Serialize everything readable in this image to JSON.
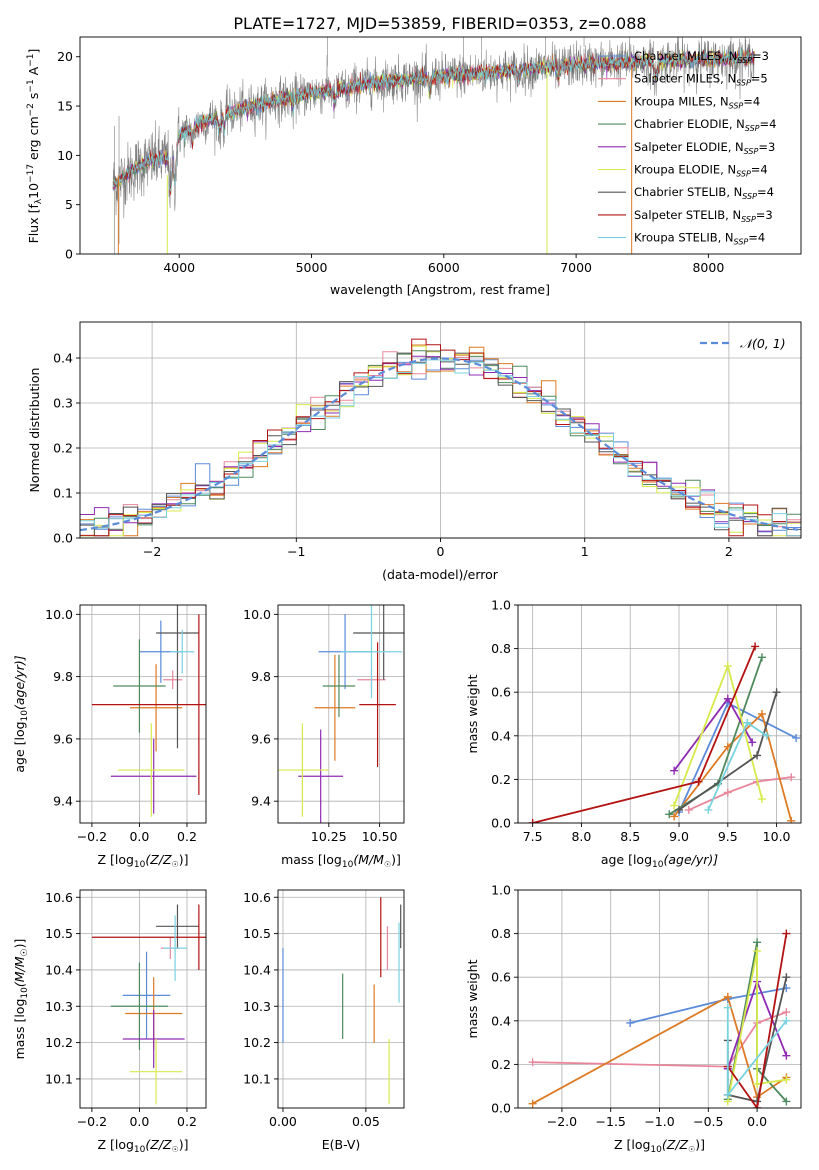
{
  "figure": {
    "title": "PLATE=1727, MJD=53859, FIBERID=0353, z=0.088",
    "colors": {
      "chabrier_miles": "#5b8bd9",
      "salpeter_miles": "#e8879c",
      "kroupa_miles": "#dd7a24",
      "chabrier_elodie": "#4f8a5e",
      "salpeter_elodie": "#8f2bb3",
      "kroupa_elodie": "#d7ea4c",
      "chabrier_stelib": "#555555",
      "salpeter_stelib": "#b31212",
      "kroupa_stelib": "#79d3df",
      "data": "#7f7f7f",
      "gauss": "#5b8bd9",
      "grid": "#b0b0b0"
    }
  },
  "chart_data": [
    {
      "id": "spectrum",
      "type": "line",
      "title": "PLATE=1727, MJD=53859, FIBERID=0353, z=0.088",
      "xlabel": "wavelength [Angstrom, rest frame]",
      "ylabel": "Flux [f",
      "ylabel_sub": "λ",
      "ylabel_rest": "10",
      "ylabel_exp": "−17",
      "ylabel_units": " erg cm",
      "ylabel_units_exp": "−2",
      "ylabel_s": " s",
      "ylabel_s_exp": "−1",
      "ylabel_A": " A",
      "ylabel_A_exp": "−1",
      "ylabel_end": "]",
      "xlim": [
        3250,
        8700
      ],
      "ylim": [
        0,
        22
      ],
      "xticks": [
        4000,
        5000,
        6000,
        7000,
        8000
      ],
      "yticks": [
        0,
        5,
        10,
        15,
        20
      ],
      "continuum": [
        [
          3500,
          7.0
        ],
        [
          3600,
          8.0
        ],
        [
          3700,
          9.0
        ],
        [
          3800,
          9.5
        ],
        [
          3950,
          9.8
        ],
        [
          4000,
          12.0
        ],
        [
          4200,
          13.5
        ],
        [
          4500,
          14.8
        ],
        [
          4800,
          15.8
        ],
        [
          5000,
          16.3
        ],
        [
          5300,
          17.0
        ],
        [
          5600,
          17.6
        ],
        [
          6000,
          18.0
        ],
        [
          6500,
          18.6
        ],
        [
          7000,
          19.2
        ],
        [
          7500,
          19.5
        ],
        [
          8000,
          19.7
        ],
        [
          8350,
          19.9
        ]
      ],
      "legend": [
        {
          "label": "Chabrier MILES, N",
          "sub": "SSP",
          "value": "=3",
          "color_key": "chabrier_miles"
        },
        {
          "label": "Salpeter MILES, N",
          "sub": "SSP",
          "value": "=5",
          "color_key": "salpeter_miles"
        },
        {
          "label": "Kroupa MILES, N",
          "sub": "SSP",
          "value": "=4",
          "color_key": "kroupa_miles"
        },
        {
          "label": "Chabrier ELODIE, N",
          "sub": "SSP",
          "value": "=4",
          "color_key": "chabrier_elodie"
        },
        {
          "label": "Salpeter ELODIE, N",
          "sub": "SSP",
          "value": "=3",
          "color_key": "salpeter_elodie"
        },
        {
          "label": "Kroupa ELODIE, N",
          "sub": "SSP",
          "value": "=4",
          "color_key": "kroupa_elodie"
        },
        {
          "label": "Chabrier STELIB, N",
          "sub": "SSP",
          "value": "=4",
          "color_key": "chabrier_stelib"
        },
        {
          "label": "Salpeter STELIB, N",
          "sub": "SSP",
          "value": "=3",
          "color_key": "salpeter_stelib"
        },
        {
          "label": "Kroupa STELIB, N",
          "sub": "SSP",
          "value": "=4",
          "color_key": "kroupa_stelib"
        }
      ]
    },
    {
      "id": "residuals",
      "type": "histogram",
      "xlabel": "(data-model)/error",
      "ylabel": "Normed distribution",
      "xlim": [
        -2.5,
        2.5
      ],
      "ylim": [
        0,
        0.48
      ],
      "xticks": [
        -2,
        -1,
        0,
        1,
        2
      ],
      "xtick_labels": [
        "−2",
        "−1",
        "0",
        "1",
        "2"
      ],
      "yticks": [
        0,
        0.1,
        0.2,
        0.3,
        0.4
      ],
      "ytick_labels": [
        "0.0",
        "0.1",
        "0.2",
        "0.3",
        "0.4"
      ],
      "bin_width": 0.1,
      "gauss_label": "𝒩(0, 1)"
    },
    {
      "id": "age_vs_Z",
      "type": "errorbar",
      "xlabel": "Z [log",
      "xlabel_sub": "10",
      "xlabel_rest": "(Z/Z",
      "xlabel_sun": "☉",
      "xlabel_end": ")]",
      "ylabel": "age  [log",
      "ylabel_sub": "10",
      "ylabel_rest": "(age/yr)]",
      "xlim": [
        -0.25,
        0.28
      ],
      "ylim": [
        9.33,
        10.03
      ],
      "xticks": [
        -0.2,
        0.0,
        0.2
      ],
      "xtick_labels": [
        "−0.2",
        "0.0",
        "0.2"
      ],
      "yticks": [
        9.4,
        9.6,
        9.8,
        10.0
      ],
      "ytick_labels": [
        "9.4",
        "9.6",
        "9.8",
        "10.0"
      ],
      "points": [
        {
          "k": "chabrier_miles",
          "x": 0.09,
          "xe": 0.09,
          "y": 9.88,
          "ye": 0.1
        },
        {
          "k": "salpeter_miles",
          "x": 0.14,
          "xe": 0.04,
          "y": 9.79,
          "ye": 0.03
        },
        {
          "k": "kroupa_miles",
          "x": 0.07,
          "xe": 0.11,
          "y": 9.7,
          "ye": 0.14
        },
        {
          "k": "chabrier_elodie",
          "x": 0.0,
          "xe": 0.11,
          "y": 9.77,
          "ye": 0.15
        },
        {
          "k": "salpeter_elodie",
          "x": 0.06,
          "xe": 0.18,
          "y": 9.48,
          "ye": 0.12
        },
        {
          "k": "kroupa_elodie",
          "x": 0.05,
          "xe": 0.14,
          "y": 9.5,
          "ye": 0.15
        },
        {
          "k": "chabrier_stelib",
          "x": 0.16,
          "xe": 0.09,
          "y": 9.94,
          "ye": 0.37
        },
        {
          "k": "salpeter_stelib",
          "x": 0.25,
          "xe": 0.45,
          "y": 9.71,
          "ye": 0.29
        },
        {
          "k": "kroupa_stelib",
          "x": 0.18,
          "xe": 0.05,
          "y": 9.88,
          "ye": 0.07
        }
      ]
    },
    {
      "id": "age_vs_mass",
      "type": "errorbar",
      "xlabel": "mass [log",
      "xlabel_sub": "10",
      "xlabel_rest": "(M/M",
      "xlabel_sun": "☉",
      "xlabel_end": ")]",
      "xlim": [
        10.0,
        10.62
      ],
      "ylim": [
        9.33,
        10.03
      ],
      "xticks": [
        10.25,
        10.5
      ],
      "xtick_labels": [
        "10.25",
        "10.50"
      ],
      "yticks": [
        9.4,
        9.6,
        9.8,
        10.0
      ],
      "ytick_labels": [
        "9.4",
        "9.6",
        "9.8",
        "10.0"
      ],
      "points": [
        {
          "k": "chabrier_miles",
          "x": 10.33,
          "xe": 0.13,
          "y": 9.88,
          "ye": 0.12
        },
        {
          "k": "salpeter_miles",
          "x": 10.46,
          "xe": 0.07,
          "y": 9.79,
          "ye": 0.03
        },
        {
          "k": "kroupa_miles",
          "x": 10.28,
          "xe": 0.1,
          "y": 9.7,
          "ye": 0.17
        },
        {
          "k": "chabrier_elodie",
          "x": 10.3,
          "xe": 0.08,
          "y": 9.77,
          "ye": 0.1
        },
        {
          "k": "salpeter_elodie",
          "x": 10.21,
          "xe": 0.11,
          "y": 9.48,
          "ye": 0.15
        },
        {
          "k": "kroupa_elodie",
          "x": 10.12,
          "xe": 0.13,
          "y": 9.5,
          "ye": 0.15
        },
        {
          "k": "chabrier_stelib",
          "x": 10.52,
          "xe": 0.15,
          "y": 9.94,
          "ye": 0.15
        },
        {
          "k": "salpeter_stelib",
          "x": 10.49,
          "xe": 0.09,
          "y": 9.71,
          "ye": 0.2
        },
        {
          "k": "kroupa_stelib",
          "x": 10.46,
          "xe": 0.15,
          "y": 9.88,
          "ye": 0.15
        }
      ]
    },
    {
      "id": "massweight_vs_age",
      "type": "line",
      "xlabel": "age  [log",
      "xlabel_sub": "10",
      "xlabel_rest": "(age/yr)]",
      "ylabel": "mass weight",
      "xlim": [
        7.35,
        10.25
      ],
      "ylim": [
        0,
        1.0
      ],
      "xticks": [
        7.5,
        8.0,
        8.5,
        9.0,
        9.5,
        10.0
      ],
      "xtick_labels": [
        "7.5",
        "8.0",
        "8.5",
        "9.0",
        "9.5",
        "10.0"
      ],
      "yticks": [
        0,
        0.2,
        0.4,
        0.6,
        0.8,
        1.0
      ],
      "ytick_labels": [
        "0.0",
        "0.2",
        "0.4",
        "0.6",
        "0.8",
        "1.0"
      ],
      "series": [
        {
          "k": "chabrier_miles",
          "points": [
            [
              9.0,
              0.05
            ],
            [
              9.5,
              0.55
            ],
            [
              10.2,
              0.39
            ]
          ]
        },
        {
          "k": "salpeter_miles",
          "points": [
            [
              9.1,
              0.06
            ],
            [
              9.5,
              0.14
            ],
            [
              9.8,
              0.19
            ],
            [
              10.15,
              0.21
            ]
          ]
        },
        {
          "k": "kroupa_miles",
          "points": [
            [
              8.95,
              0.03
            ],
            [
              9.5,
              0.35
            ],
            [
              9.85,
              0.5
            ],
            [
              10.15,
              0.01
            ]
          ]
        },
        {
          "k": "chabrier_elodie",
          "points": [
            [
              8.9,
              0.04
            ],
            [
              9.4,
              0.18
            ],
            [
              9.85,
              0.76
            ]
          ]
        },
        {
          "k": "salpeter_elodie",
          "points": [
            [
              8.95,
              0.24
            ],
            [
              9.5,
              0.57
            ],
            [
              9.75,
              0.37
            ]
          ]
        },
        {
          "k": "kroupa_elodie",
          "points": [
            [
              8.95,
              0.08
            ],
            [
              9.5,
              0.72
            ],
            [
              9.85,
              0.11
            ]
          ]
        },
        {
          "k": "chabrier_stelib",
          "points": [
            [
              9.0,
              0.06
            ],
            [
              9.8,
              0.31
            ],
            [
              10.0,
              0.6
            ]
          ]
        },
        {
          "k": "salpeter_stelib",
          "points": [
            [
              7.5,
              0.0
            ],
            [
              9.2,
              0.19
            ],
            [
              9.78,
              0.81
            ]
          ]
        },
        {
          "k": "kroupa_stelib",
          "points": [
            [
              9.3,
              0.06
            ],
            [
              9.7,
              0.46
            ],
            [
              9.9,
              0.4
            ]
          ]
        }
      ]
    },
    {
      "id": "mass_vs_Z",
      "type": "errorbar",
      "xlabel": "Z [log",
      "xlabel_sub": "10",
      "xlabel_rest": "(Z/Z",
      "xlabel_sun": "☉",
      "xlabel_end": ")]",
      "ylabel": "mass [log",
      "ylabel_sub": "10",
      "ylabel_rest": "(M/M",
      "ylabel_sun": "☉",
      "ylabel_end": ")]",
      "xlim": [
        -0.25,
        0.28
      ],
      "ylim": [
        10.02,
        10.62
      ],
      "xticks": [
        -0.2,
        0.0,
        0.2
      ],
      "xtick_labels": [
        "−0.2",
        "0.0",
        "0.2"
      ],
      "yticks": [
        10.1,
        10.2,
        10.3,
        10.4,
        10.5,
        10.6
      ],
      "ytick_labels": [
        "10.1",
        "10.2",
        "10.3",
        "10.4",
        "10.5",
        "10.6"
      ],
      "points": [
        {
          "k": "chabrier_miles",
          "x": 0.03,
          "xe": 0.1,
          "y": 10.33,
          "ye": 0.12
        },
        {
          "k": "salpeter_miles",
          "x": 0.13,
          "xe": 0.04,
          "y": 10.46,
          "ye": 0.03
        },
        {
          "k": "kroupa_miles",
          "x": 0.06,
          "xe": 0.12,
          "y": 10.28,
          "ye": 0.1
        },
        {
          "k": "chabrier_elodie",
          "x": 0.0,
          "xe": 0.12,
          "y": 10.3,
          "ye": 0.12
        },
        {
          "k": "salpeter_elodie",
          "x": 0.06,
          "xe": 0.13,
          "y": 10.21,
          "ye": 0.08
        },
        {
          "k": "kroupa_elodie",
          "x": 0.07,
          "xe": 0.11,
          "y": 10.12,
          "ye": 0.09
        },
        {
          "k": "chabrier_stelib",
          "x": 0.16,
          "xe": 0.09,
          "y": 10.52,
          "ye": 0.06
        },
        {
          "k": "salpeter_stelib",
          "x": 0.25,
          "xe": 0.45,
          "y": 10.49,
          "ye": 0.09
        },
        {
          "k": "kroupa_stelib",
          "x": 0.15,
          "xe": 0.05,
          "y": 10.46,
          "ye": 0.09
        }
      ]
    },
    {
      "id": "mass_vs_ebv",
      "type": "errorbar",
      "xlabel": "E(B-V)",
      "xlim": [
        -0.003,
        0.073
      ],
      "ylim": [
        10.02,
        10.62
      ],
      "xticks": [
        0.0,
        0.05
      ],
      "xtick_labels": [
        "0.00",
        "0.05"
      ],
      "yticks": [
        10.1,
        10.2,
        10.3,
        10.4,
        10.5,
        10.6
      ],
      "ytick_labels": [
        "10.1",
        "10.2",
        "10.3",
        "10.4",
        "10.5",
        "10.6"
      ],
      "points": [
        {
          "k": "chabrier_miles",
          "x": 0.0,
          "xe": 0,
          "y": 10.33,
          "ye": 0.13
        },
        {
          "k": "salpeter_miles",
          "x": 0.063,
          "xe": 0,
          "y": 10.46,
          "ye": 0.06
        },
        {
          "k": "kroupa_miles",
          "x": 0.055,
          "xe": 0,
          "y": 10.28,
          "ye": 0.08
        },
        {
          "k": "chabrier_elodie",
          "x": 0.036,
          "xe": 0,
          "y": 10.3,
          "ye": 0.09
        },
        {
          "k": "kroupa_elodie",
          "x": 0.064,
          "xe": 0,
          "y": 10.12,
          "ye": 0.09
        },
        {
          "k": "chabrier_stelib",
          "x": 0.071,
          "xe": 0,
          "y": 10.52,
          "ye": 0.06
        },
        {
          "k": "salpeter_stelib",
          "x": 0.059,
          "xe": 0,
          "y": 10.49,
          "ye": 0.11
        },
        {
          "k": "kroupa_stelib",
          "x": 0.07,
          "xe": 0,
          "y": 10.42,
          "ye": 0.11
        }
      ]
    },
    {
      "id": "massweight_vs_Z",
      "type": "line",
      "xlabel": "Z [log",
      "xlabel_sub": "10",
      "xlabel_rest": "(Z/Z",
      "xlabel_sun": "☉",
      "xlabel_end": ")]",
      "ylabel": "mass weight",
      "xlim": [
        -2.45,
        0.45
      ],
      "ylim": [
        0,
        1.0
      ],
      "xticks": [
        -2.0,
        -1.5,
        -1.0,
        -0.5,
        0.0
      ],
      "xtick_labels": [
        "−2.0",
        "−1.5",
        "−1.0",
        "−0.5",
        "0.0"
      ],
      "yticks": [
        0,
        0.2,
        0.4,
        0.6,
        0.8,
        1.0
      ],
      "ytick_labels": [
        "0.0",
        "0.2",
        "0.4",
        "0.6",
        "0.8",
        "1.0"
      ],
      "series": [
        {
          "k": "chabrier_miles",
          "points": [
            [
              -1.3,
              0.39
            ],
            [
              -0.3,
              0.5
            ],
            [
              0.3,
              0.55
            ]
          ]
        },
        {
          "k": "salpeter_miles",
          "points": [
            [
              -2.3,
              0.21
            ],
            [
              -0.3,
              0.19
            ],
            [
              0.0,
              0.39
            ],
            [
              0.3,
              0.44
            ]
          ]
        },
        {
          "k": "kroupa_miles",
          "points": [
            [
              -2.3,
              0.02
            ],
            [
              -0.3,
              0.51
            ],
            [
              0.0,
              0.05
            ],
            [
              0.3,
              0.14
            ]
          ]
        },
        {
          "k": "chabrier_elodie",
          "points": [
            [
              -0.3,
              0.04
            ],
            [
              0.0,
              0.76
            ],
            [
              0.0,
              0.18
            ],
            [
              0.3,
              0.03
            ]
          ]
        },
        {
          "k": "salpeter_elodie",
          "points": [
            [
              -0.3,
              0.18
            ],
            [
              0.0,
              0.58
            ],
            [
              0.3,
              0.24
            ]
          ]
        },
        {
          "k": "kroupa_elodie",
          "points": [
            [
              -0.3,
              0.03
            ],
            [
              0.0,
              0.72
            ],
            [
              0.0,
              0.11
            ],
            [
              0.3,
              0.13
            ]
          ]
        },
        {
          "k": "chabrier_stelib",
          "points": [
            [
              -0.3,
              0.31
            ],
            [
              -0.3,
              0.06
            ],
            [
              0.0,
              0.03
            ],
            [
              0.3,
              0.6
            ]
          ]
        },
        {
          "k": "salpeter_stelib",
          "points": [
            [
              -0.3,
              0.19
            ],
            [
              0.0,
              0.0
            ],
            [
              0.3,
              0.8
            ]
          ]
        },
        {
          "k": "kroupa_stelib",
          "points": [
            [
              -0.3,
              0.46
            ],
            [
              -0.3,
              0.06
            ],
            [
              0.3,
              0.4
            ]
          ]
        }
      ]
    }
  ]
}
